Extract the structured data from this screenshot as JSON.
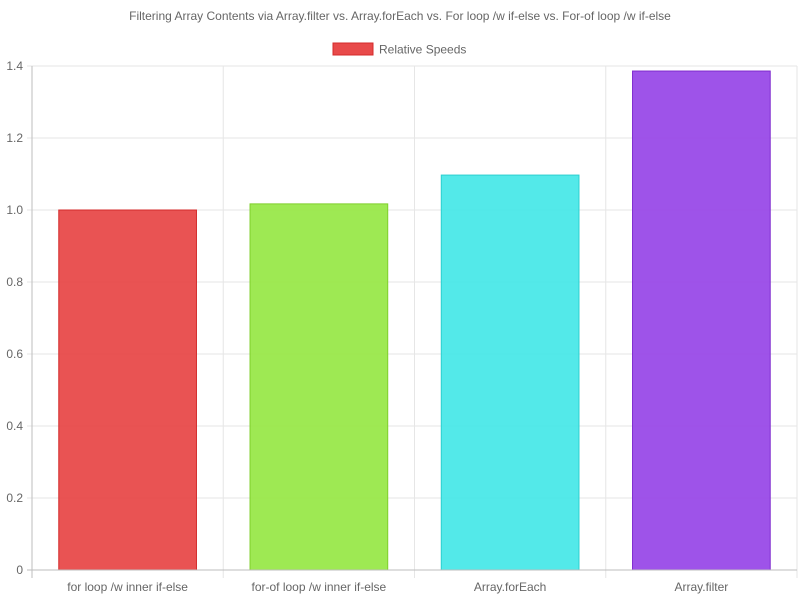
{
  "chart_data": {
    "type": "bar",
    "title": "Filtering Array Contents via Array.filter vs. Array.forEach vs. For loop /w if-else vs. For-of loop /w if-else",
    "legend": {
      "label": "Relative Speeds",
      "color": "#e84a4a",
      "position": "top"
    },
    "categories": [
      "for loop /w inner if-else",
      "for-of loop /w inner if-else",
      "Array.forEach",
      "Array.filter"
    ],
    "series": [
      {
        "name": "Relative Speeds",
        "values": [
          1.0,
          1.017,
          1.097,
          1.386
        ]
      }
    ],
    "bar_colors": [
      "#e84a4a",
      "#99e84a",
      "#4ae8e8",
      "#994ae8"
    ],
    "bar_borders": [
      "#d42b2b",
      "#7fcf2b",
      "#2bcfcf",
      "#7f2bcf"
    ],
    "yticks": [
      "0",
      "0.2",
      "0.4",
      "0.6",
      "0.8",
      "1.0",
      "1.2",
      "1.4"
    ],
    "ylim": [
      0,
      1.4
    ],
    "grid": true
  }
}
